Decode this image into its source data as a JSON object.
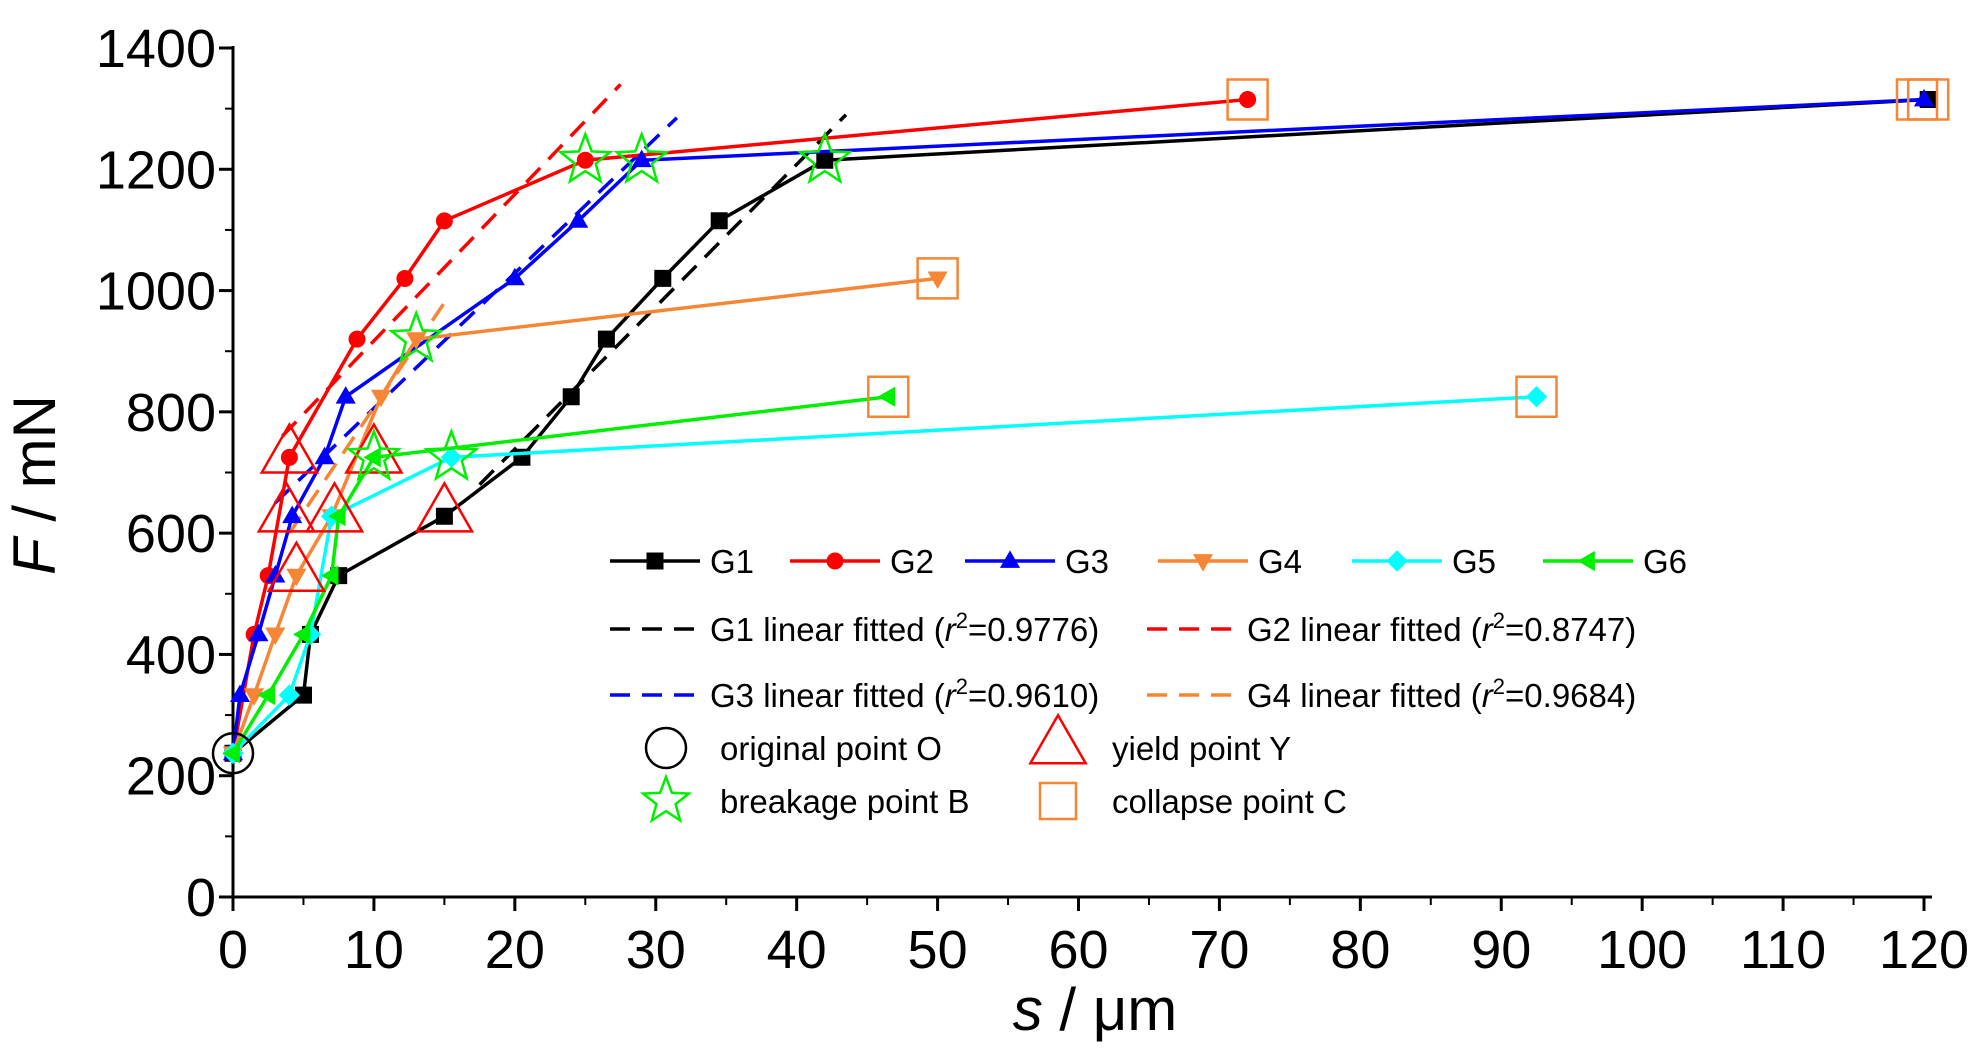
{
  "chart_data": {
    "type": "line",
    "xlabel": "s / μm",
    "ylabel": "F / mN",
    "xlabel_var": "s",
    "xlabel_unit": " / μm",
    "ylabel_var": "F",
    "ylabel_unit": " / mN",
    "xlim": [
      0,
      120
    ],
    "ylim": [
      0,
      1400
    ],
    "xticks": [
      "0",
      "10",
      "20",
      "30",
      "40",
      "50",
      "60",
      "70",
      "80",
      "90",
      "100",
      "110",
      "120"
    ],
    "yticks": [
      "0",
      "200",
      "400",
      "600",
      "800",
      "1000",
      "1200",
      "1400"
    ],
    "grid": false,
    "legend_position": "bottom-right",
    "series": [
      {
        "name": "G1",
        "color": "#000000",
        "marker": "square",
        "x": [
          0,
          5,
          5.5,
          7.5,
          15,
          20.5,
          24,
          26.5,
          30.5,
          34.5,
          42,
          120.3
        ],
        "y": [
          237,
          333,
          433,
          530,
          628,
          725,
          825,
          920,
          1020,
          1115,
          1215,
          1315
        ]
      },
      {
        "name": "G2",
        "color": "#ff0000",
        "marker": "circle",
        "x": [
          0,
          1.5,
          2.5,
          4,
          8.8,
          12.2,
          15,
          25,
          72
        ],
        "y": [
          237,
          433,
          530,
          725,
          920,
          1020,
          1115,
          1215,
          1315
        ]
      },
      {
        "name": "G3",
        "color": "#0000ff",
        "marker": "triangle-up",
        "x": [
          0,
          0.5,
          1.8,
          3,
          4.2,
          6.5,
          8,
          20,
          24.5,
          29,
          120
        ],
        "y": [
          237,
          333,
          433,
          530,
          628,
          725,
          825,
          1020,
          1115,
          1215,
          1315
        ]
      },
      {
        "name": "G4",
        "color": "#f68634",
        "marker": "triangle-down",
        "x": [
          0,
          1.5,
          3,
          4.5,
          7,
          10.5,
          13,
          50
        ],
        "y": [
          237,
          333,
          433,
          530,
          628,
          825,
          920,
          1020
        ]
      },
      {
        "name": "G5",
        "color": "#00ffff",
        "marker": "diamond",
        "x": [
          0,
          4,
          5.5,
          7,
          15.5,
          92.5
        ],
        "y": [
          237,
          333,
          433,
          628,
          725,
          825
        ]
      },
      {
        "name": "G6",
        "color": "#00ee00",
        "marker": "triangle-left",
        "x": [
          0,
          2.5,
          5,
          7,
          7.5,
          10,
          46.5
        ],
        "y": [
          237,
          333,
          433,
          530,
          628,
          725,
          825
        ]
      }
    ],
    "fits": [
      {
        "name": "G1 linear fitted",
        "r2": "0.9776",
        "color": "#000000",
        "x": [
          17.5,
          43.5
        ],
        "y": [
          680,
          1290
        ]
      },
      {
        "name": "G2 linear fitted",
        "r2": "0.8747",
        "color": "#ff0000",
        "x": [
          3.5,
          27.5
        ],
        "y": [
          760,
          1340
        ]
      },
      {
        "name": "G3 linear fitted",
        "r2": "0.9610",
        "color": "#0000ff",
        "x": [
          3,
          31.5
        ],
        "y": [
          650,
          1285
        ]
      },
      {
        "name": "G4 linear fitted",
        "r2": "0.9684",
        "color": "#f68634",
        "x": [
          4,
          15
        ],
        "y": [
          600,
          980
        ]
      }
    ],
    "special_points": [
      {
        "name": "original point O",
        "marker": "circle",
        "color": "#000000",
        "points": [
          [
            0,
            237
          ]
        ]
      },
      {
        "name": "yield point Y",
        "marker": "triangle",
        "color": "#ff0000",
        "points": [
          [
            4,
            725
          ],
          [
            3.8,
            628
          ],
          [
            4.5,
            530
          ],
          [
            7.2,
            628
          ],
          [
            10,
            725
          ],
          [
            15,
            628
          ]
        ]
      },
      {
        "name": "breakage point B",
        "marker": "star",
        "color": "#00ee00",
        "points": [
          [
            25,
            1215
          ],
          [
            29,
            1215
          ],
          [
            42,
            1215
          ],
          [
            13,
            920
          ],
          [
            10,
            725
          ],
          [
            15.5,
            725
          ]
        ]
      },
      {
        "name": "collapse point C",
        "marker": "square",
        "color": "#f68634",
        "points": [
          [
            72,
            1315
          ],
          [
            119.5,
            1315
          ],
          [
            120.3,
            1315
          ],
          [
            50,
            1020
          ],
          [
            46.5,
            825
          ],
          [
            92.5,
            825
          ]
        ]
      }
    ]
  }
}
